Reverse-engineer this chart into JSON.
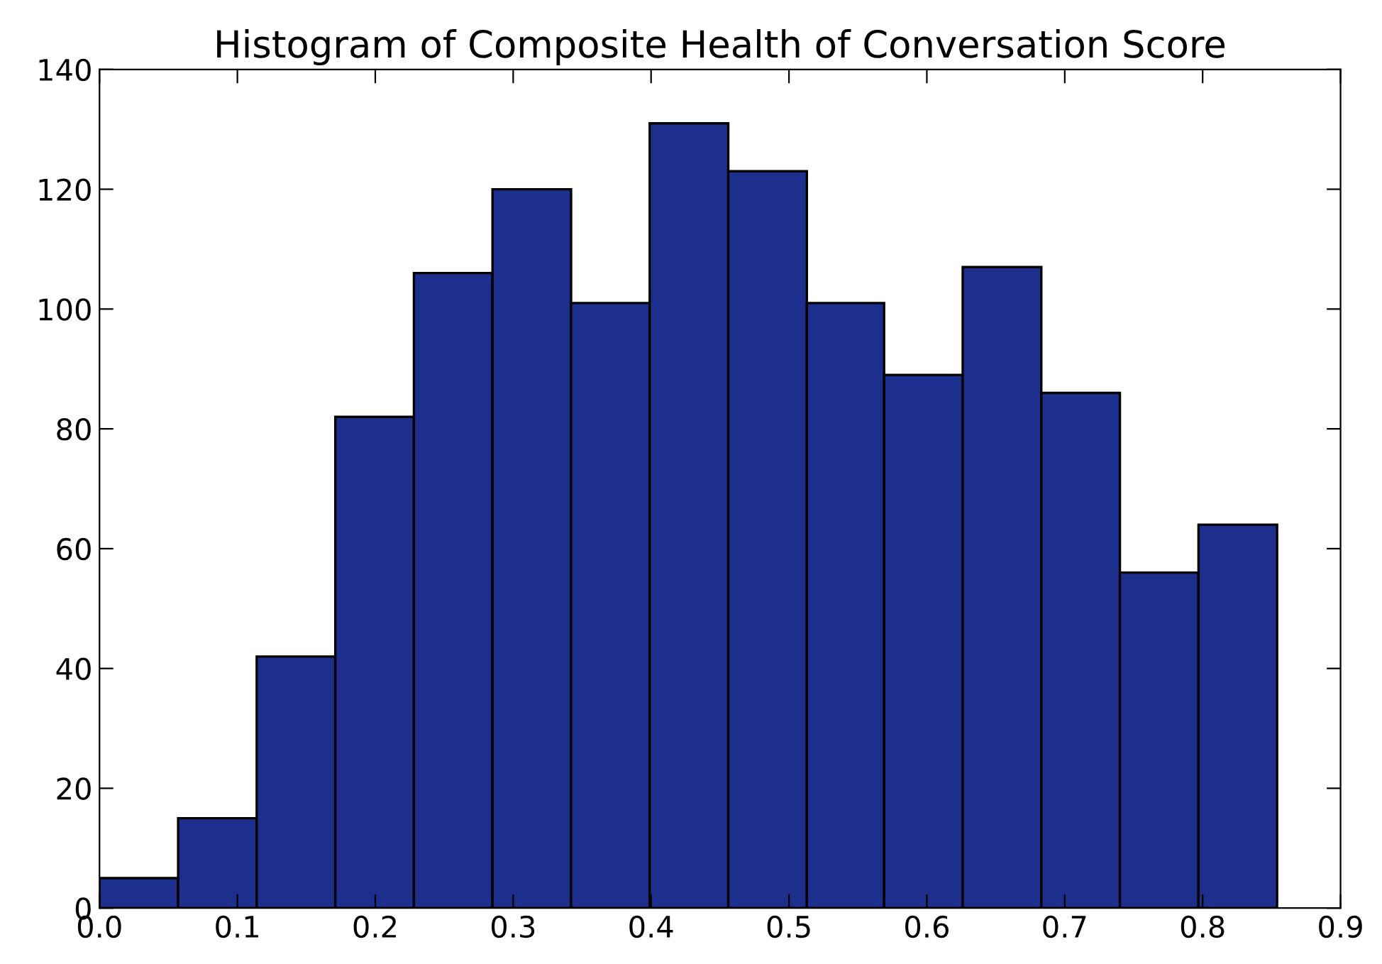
{
  "chart_data": {
    "type": "histogram",
    "title": "Histogram of Composite Health of Conversation Score",
    "bins": [
      0.0,
      0.057,
      0.114,
      0.171,
      0.228,
      0.285,
      0.342,
      0.399,
      0.456,
      0.513,
      0.569,
      0.626,
      0.683,
      0.74,
      0.797,
      0.854
    ],
    "values": [
      5,
      15,
      42,
      82,
      106,
      120,
      101,
      131,
      123,
      101,
      89,
      107,
      86,
      56,
      64
    ],
    "color": "#1c2f8c",
    "xlim": [
      0.0,
      0.9
    ],
    "xticks": [
      {
        "value": 0.0,
        "label": "0.0"
      },
      0.1,
      0.2,
      0.3,
      0.4,
      0.5,
      0.6,
      0.7,
      0.8,
      0.9
    ],
    "ylim": [
      0,
      140
    ],
    "yticks": [
      0,
      20,
      40,
      60,
      80,
      100,
      120,
      140
    ],
    "grid": false
  }
}
